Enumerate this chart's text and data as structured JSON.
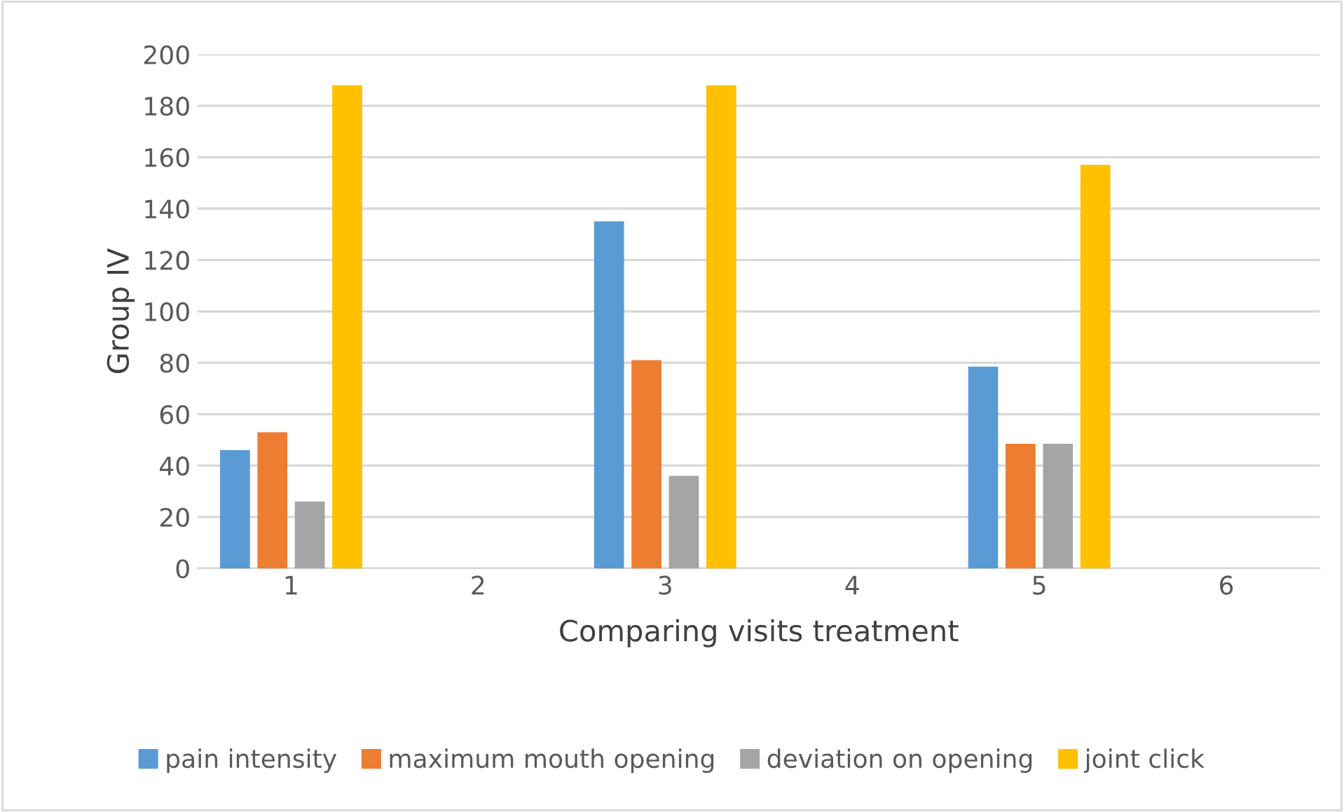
{
  "chart_data": {
    "type": "bar",
    "xlabel": "Comparing visits treatment",
    "ylabel": "Group IV",
    "categories": [
      "1",
      "2",
      "3",
      "4",
      "5",
      "6"
    ],
    "series": [
      {
        "name": "pain intensity",
        "color": "#5b9bd5",
        "values": [
          46,
          null,
          135,
          null,
          78.5,
          null
        ]
      },
      {
        "name": "maximum mouth opening",
        "color": "#ed7d31",
        "values": [
          53,
          null,
          81,
          null,
          48.5,
          null
        ]
      },
      {
        "name": "deviation on opening",
        "color": "#a5a5a5",
        "values": [
          26,
          null,
          36,
          null,
          48.5,
          null
        ]
      },
      {
        "name": "joint click",
        "color": "#ffc000",
        "values": [
          188,
          null,
          188,
          null,
          157,
          null
        ]
      }
    ],
    "ylim": [
      0,
      200
    ],
    "yticks": [
      0,
      20,
      40,
      60,
      80,
      100,
      120,
      140,
      160,
      180,
      200
    ],
    "grid": "y",
    "legend": "bottom"
  }
}
